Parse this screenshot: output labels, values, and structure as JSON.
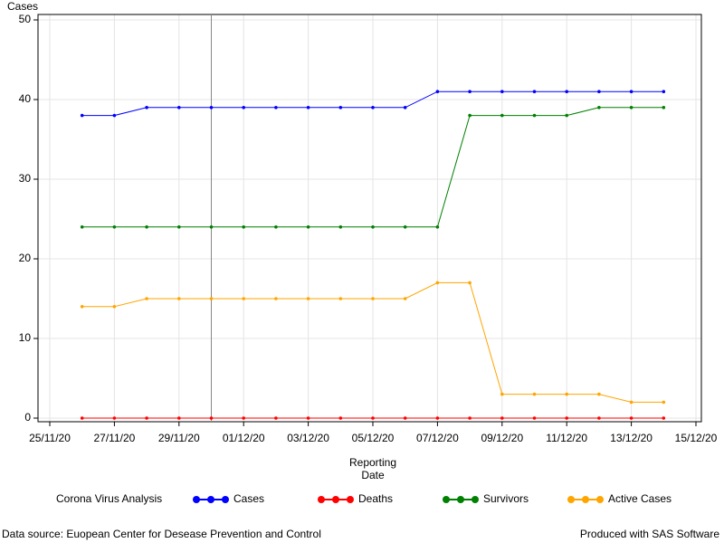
{
  "chart_data": {
    "type": "line",
    "y_label": "Cases",
    "x_label_lines": [
      "Reporting",
      "Date"
    ],
    "legend_title": "Corona Virus Analysis",
    "x": [
      "26/11/20",
      "27/11/20",
      "28/11/20",
      "29/11/20",
      "30/11/20",
      "01/12/20",
      "02/12/20",
      "03/12/20",
      "04/12/20",
      "05/12/20",
      "06/12/20",
      "07/12/20",
      "08/12/20",
      "09/12/20",
      "10/12/20",
      "11/12/20",
      "12/12/20",
      "13/12/20",
      "14/12/20"
    ],
    "series": [
      {
        "name": "Cases",
        "color": "#0000ff",
        "values": [
          38,
          38,
          39,
          39,
          39,
          39,
          39,
          39,
          39,
          39,
          39,
          41,
          41,
          41,
          41,
          41,
          41,
          41,
          41
        ]
      },
      {
        "name": "Deaths",
        "color": "#ff0000",
        "values": [
          0,
          0,
          0,
          0,
          0,
          0,
          0,
          0,
          0,
          0,
          0,
          0,
          0,
          0,
          0,
          0,
          0,
          0,
          0
        ]
      },
      {
        "name": "Survivors",
        "color": "#008000",
        "values": [
          24,
          24,
          24,
          24,
          24,
          24,
          24,
          24,
          24,
          24,
          24,
          24,
          38,
          38,
          38,
          38,
          39,
          39,
          39
        ]
      },
      {
        "name": "Active Cases",
        "color": "#ffa500",
        "values": [
          14,
          14,
          15,
          15,
          15,
          15,
          15,
          15,
          15,
          15,
          15,
          17,
          17,
          3,
          3,
          3,
          3,
          2,
          2
        ]
      }
    ],
    "xlim": [
      "25/11/20",
      "15/12/20"
    ],
    "xticks": [
      "25/11/20",
      "27/11/20",
      "29/11/20",
      "01/12/20",
      "03/12/20",
      "05/12/20",
      "07/12/20",
      "09/12/20",
      "11/12/20",
      "13/12/20",
      "15/12/20"
    ],
    "ylim": [
      0,
      50
    ],
    "yticks": [
      0,
      10,
      20,
      30,
      40,
      50
    ],
    "x_reference_line": "30/11/20",
    "grid": true,
    "footnote_left": "Data source: Euopean Center for Desease Prevention and Control",
    "footnote_right": "Produced with SAS Software"
  }
}
